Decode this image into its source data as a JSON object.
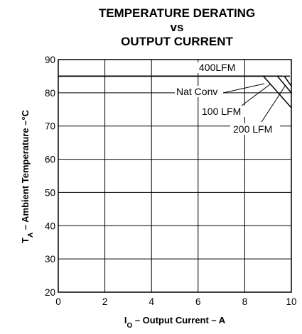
{
  "chart_data": {
    "type": "line",
    "title_lines": [
      "TEMPERATURE DERATING",
      "vs",
      "OUTPUT CURRENT"
    ],
    "xlabel": {
      "main": "I",
      "sub": "O",
      "rest": " – Output Current – A"
    },
    "ylabel": {
      "main": "T",
      "sub": "A",
      "rest": " – Ambient Temperature –°C"
    },
    "xlim": [
      0,
      10
    ],
    "ylim": [
      20,
      90
    ],
    "x_ticks": [
      "0",
      "2",
      "4",
      "6",
      "8",
      "10"
    ],
    "y_ticks": [
      "20",
      "30",
      "40",
      "50",
      "60",
      "70",
      "80",
      "90"
    ],
    "grid": true,
    "series": [
      {
        "name": "400LFM",
        "x": [
          0,
          10
        ],
        "y": [
          85,
          85
        ],
        "style": "dashed"
      },
      {
        "name": "Nat Conv",
        "x": [
          0,
          8.8,
          10
        ],
        "y": [
          85,
          85,
          75.5
        ],
        "style": "solid"
      },
      {
        "name": "100 LFM",
        "x": [
          0,
          9.4,
          10
        ],
        "y": [
          85,
          85,
          80
        ],
        "style": "solid"
      },
      {
        "name": "200 LFM",
        "x": [
          0,
          9.7,
          10
        ],
        "y": [
          85,
          85,
          82
        ],
        "style": "solid"
      }
    ],
    "annotations": [
      {
        "text": "400LFM",
        "series": "400LFM"
      },
      {
        "text": "Nat Conv",
        "series": "Nat Conv"
      },
      {
        "text": "100 LFM",
        "series": "100 LFM"
      },
      {
        "text": "200 LFM",
        "series": "200 LFM"
      }
    ]
  }
}
